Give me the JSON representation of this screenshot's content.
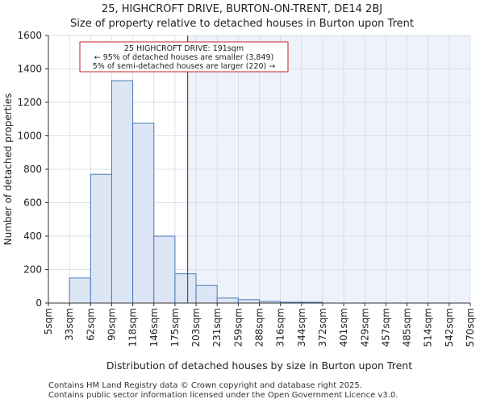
{
  "header": {
    "title": "25, HIGHCROFT DRIVE, BURTON-ON-TRENT, DE14 2BJ",
    "subtitle": "Size of property relative to detached houses in Burton upon Trent"
  },
  "footer": {
    "line1": "Contains HM Land Registry data © Crown copyright and database right 2025.",
    "line2": "Contains public sector information licensed under the Open Government Licence v3.0."
  },
  "colors": {
    "bar_fill": "#dce6f5",
    "bar_stroke": "#4a7ab8",
    "highlight_bg": "#eef2fb",
    "marker": "#c0232a",
    "grid": "#cfd6e4"
  },
  "chart_data": {
    "type": "bar",
    "title": "25, HIGHCROFT DRIVE, BURTON-ON-TRENT, DE14 2BJ",
    "subtitle": "Size of property relative to detached houses in Burton upon Trent",
    "xlabel": "Distribution of detached houses by size in Burton upon Trent",
    "ylabel": "Number of detached properties",
    "categories": [
      "5sqm",
      "33sqm",
      "62sqm",
      "90sqm",
      "118sqm",
      "146sqm",
      "175sqm",
      "203sqm",
      "231sqm",
      "259sqm",
      "288sqm",
      "316sqm",
      "344sqm",
      "372sqm",
      "401sqm",
      "429sqm",
      "457sqm",
      "485sqm",
      "514sqm",
      "542sqm",
      "570sqm"
    ],
    "values": [
      0,
      150,
      770,
      1330,
      1075,
      400,
      175,
      105,
      30,
      20,
      10,
      5,
      5,
      0,
      0,
      0,
      0,
      0,
      0,
      0,
      0
    ],
    "ylim": [
      0,
      1600
    ],
    "yticks": [
      0,
      200,
      400,
      600,
      800,
      1000,
      1200,
      1400,
      1600
    ],
    "grid": true,
    "marker_value": 191,
    "marker_position_bins": 6.6,
    "annotation": {
      "line1": "25 HIGHCROFT DRIVE: 191sqm",
      "line2": "← 95% of detached houses are smaller (3,849)",
      "line3": "5% of semi-detached houses are larger (220) →"
    }
  }
}
